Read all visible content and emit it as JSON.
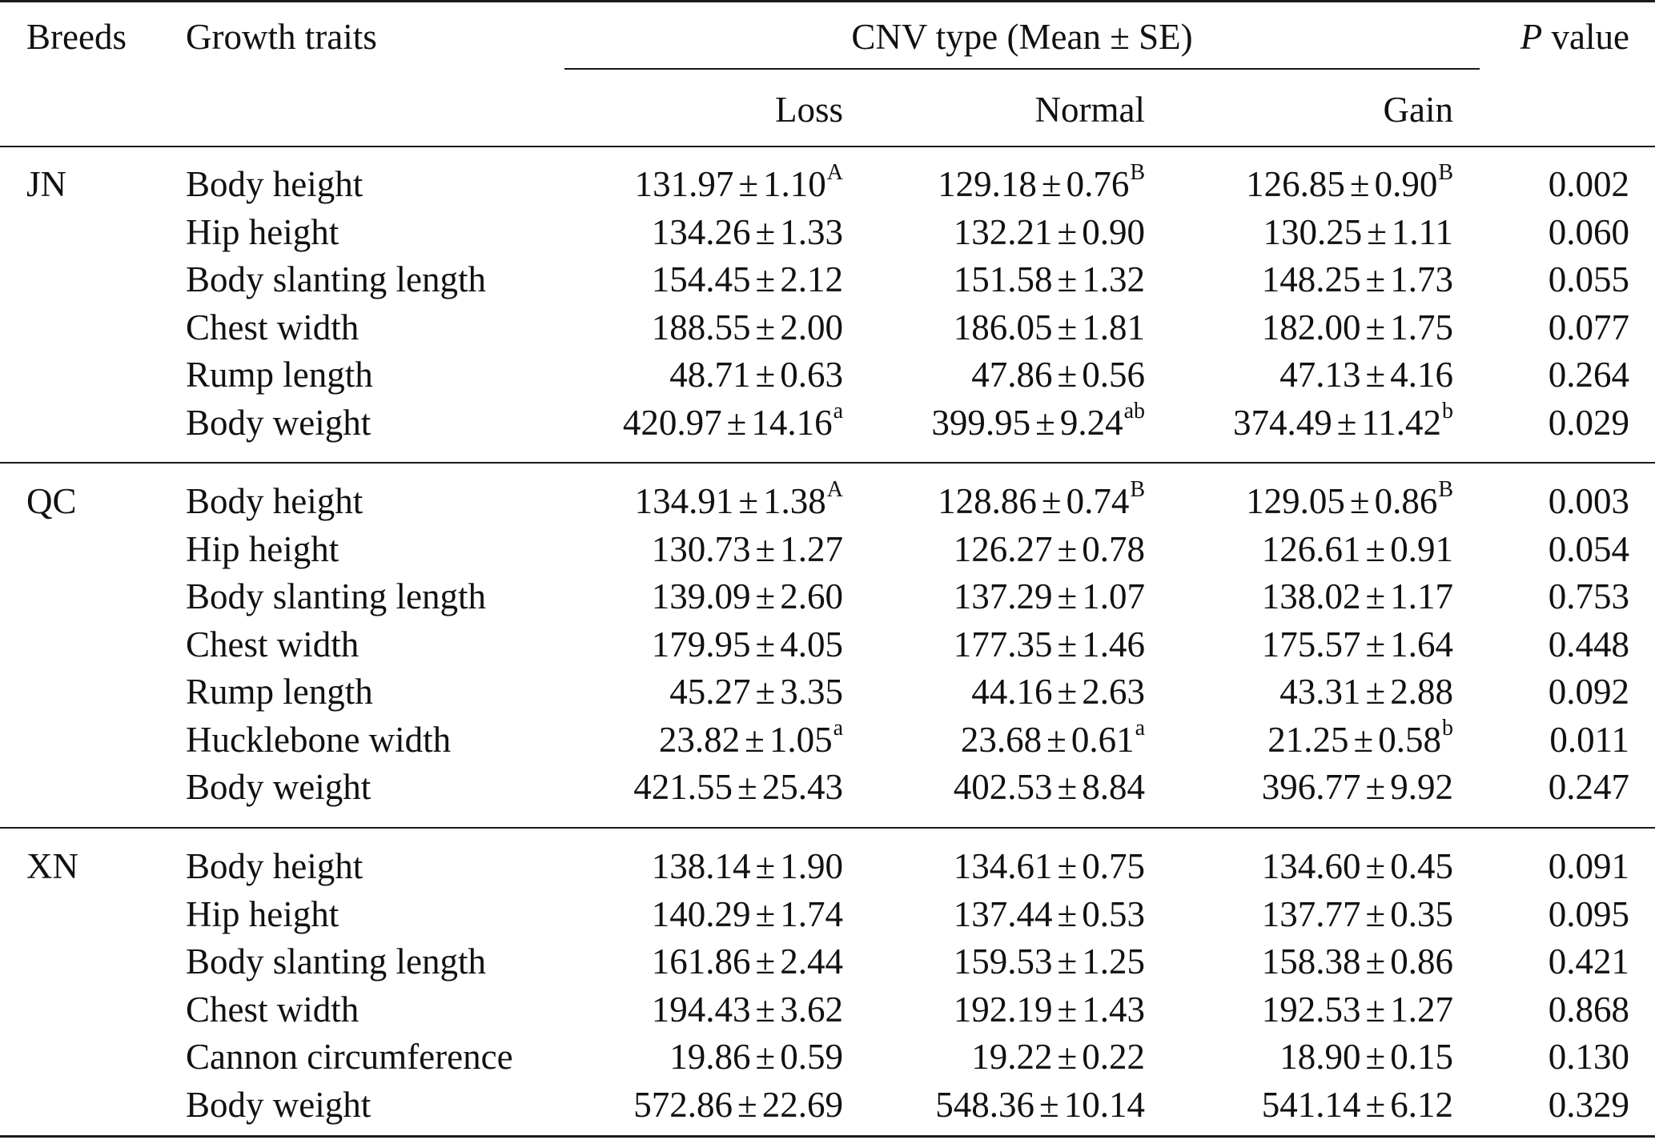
{
  "header": {
    "breeds": "Breeds",
    "growth_traits": "Growth traits",
    "cnv_type": "CNV type (Mean ± SE)",
    "p_italic": "P",
    "p_rest": "value",
    "loss": "Loss",
    "normal": "Normal",
    "gain": "Gain"
  },
  "pm": "±",
  "sections": [
    {
      "breed": "JN",
      "rows": [
        {
          "trait": "Body height",
          "loss": "131.97",
          "loss_se": "1.10",
          "loss_sup": "A",
          "normal": "129.18",
          "normal_se": "0.76",
          "normal_sup": "B",
          "gain": "126.85",
          "gain_se": "0.90",
          "gain_sup": "B",
          "p": "0.002"
        },
        {
          "trait": "Hip height",
          "loss": "134.26",
          "loss_se": "1.33",
          "loss_sup": "",
          "normal": "132.21",
          "normal_se": "0.90",
          "normal_sup": "",
          "gain": "130.25",
          "gain_se": "1.11",
          "gain_sup": "",
          "p": "0.060"
        },
        {
          "trait": "Body slanting length",
          "loss": "154.45",
          "loss_se": "2.12",
          "loss_sup": "",
          "normal": "151.58",
          "normal_se": "1.32",
          "normal_sup": "",
          "gain": "148.25",
          "gain_se": "1.73",
          "gain_sup": "",
          "p": "0.055"
        },
        {
          "trait": "Chest width",
          "loss": "188.55",
          "loss_se": "2.00",
          "loss_sup": "",
          "normal": "186.05",
          "normal_se": "1.81",
          "normal_sup": "",
          "gain": "182.00",
          "gain_se": "1.75",
          "gain_sup": "",
          "p": "0.077"
        },
        {
          "trait": "Rump length",
          "loss": "48.71",
          "loss_se": "0.63",
          "loss_sup": "",
          "normal": "47.86",
          "normal_se": "0.56",
          "normal_sup": "",
          "gain": "47.13",
          "gain_se": "4.16",
          "gain_sup": "",
          "p": "0.264"
        },
        {
          "trait": "Body weight",
          "loss": "420.97",
          "loss_se": "14.16",
          "loss_sup": "a",
          "normal": "399.95",
          "normal_se": "9.24",
          "normal_sup": "ab",
          "gain": "374.49",
          "gain_se": "11.42",
          "gain_sup": "b",
          "p": "0.029"
        }
      ]
    },
    {
      "breed": "QC",
      "rows": [
        {
          "trait": "Body height",
          "loss": "134.91",
          "loss_se": "1.38",
          "loss_sup": "A",
          "normal": "128.86",
          "normal_se": "0.74",
          "normal_sup": "B",
          "gain": "129.05",
          "gain_se": "0.86",
          "gain_sup": "B",
          "p": "0.003"
        },
        {
          "trait": "Hip height",
          "loss": "130.73",
          "loss_se": "1.27",
          "loss_sup": "",
          "normal": "126.27",
          "normal_se": "0.78",
          "normal_sup": "",
          "gain": "126.61",
          "gain_se": "0.91",
          "gain_sup": "",
          "p": "0.054"
        },
        {
          "trait": "Body slanting length",
          "loss": "139.09",
          "loss_se": "2.60",
          "loss_sup": "",
          "normal": "137.29",
          "normal_se": "1.07",
          "normal_sup": "",
          "gain": "138.02",
          "gain_se": "1.17",
          "gain_sup": "",
          "p": "0.753"
        },
        {
          "trait": "Chest width",
          "loss": "179.95",
          "loss_se": "4.05",
          "loss_sup": "",
          "normal": "177.35",
          "normal_se": "1.46",
          "normal_sup": "",
          "gain": "175.57",
          "gain_se": "1.64",
          "gain_sup": "",
          "p": "0.448"
        },
        {
          "trait": "Rump length",
          "loss": "45.27",
          "loss_se": "3.35",
          "loss_sup": "",
          "normal": "44.16",
          "normal_se": "2.63",
          "normal_sup": "",
          "gain": "43.31",
          "gain_se": "2.88",
          "gain_sup": "",
          "p": "0.092"
        },
        {
          "trait": "Hucklebone width",
          "loss": "23.82",
          "loss_se": "1.05",
          "loss_sup": "a",
          "normal": "23.68",
          "normal_se": "0.61",
          "normal_sup": "a",
          "gain": "21.25",
          "gain_se": "0.58",
          "gain_sup": "b",
          "p": "0.011"
        },
        {
          "trait": "Body weight",
          "loss": "421.55",
          "loss_se": "25.43",
          "loss_sup": "",
          "normal": "402.53",
          "normal_se": "8.84",
          "normal_sup": "",
          "gain": "396.77",
          "gain_se": "9.92",
          "gain_sup": "",
          "p": "0.247"
        }
      ]
    },
    {
      "breed": "XN",
      "rows": [
        {
          "trait": "Body height",
          "loss": "138.14",
          "loss_se": "1.90",
          "loss_sup": "",
          "normal": "134.61",
          "normal_se": "0.75",
          "normal_sup": "",
          "gain": "134.60",
          "gain_se": "0.45",
          "gain_sup": "",
          "p": "0.091"
        },
        {
          "trait": "Hip height",
          "loss": "140.29",
          "loss_se": "1.74",
          "loss_sup": "",
          "normal": "137.44",
          "normal_se": "0.53",
          "normal_sup": "",
          "gain": "137.77",
          "gain_se": "0.35",
          "gain_sup": "",
          "p": "0.095"
        },
        {
          "trait": "Body slanting length",
          "loss": "161.86",
          "loss_se": "2.44",
          "loss_sup": "",
          "normal": "159.53",
          "normal_se": "1.25",
          "normal_sup": "",
          "gain": "158.38",
          "gain_se": "0.86",
          "gain_sup": "",
          "p": "0.421"
        },
        {
          "trait": "Chest width",
          "loss": "194.43",
          "loss_se": "3.62",
          "loss_sup": "",
          "normal": "192.19",
          "normal_se": "1.43",
          "normal_sup": "",
          "gain": "192.53",
          "gain_se": "1.27",
          "gain_sup": "",
          "p": "0.868"
        },
        {
          "trait": "Cannon circumference",
          "loss": "19.86",
          "loss_se": "0.59",
          "loss_sup": "",
          "normal": "19.22",
          "normal_se": "0.22",
          "normal_sup": "",
          "gain": "18.90",
          "gain_se": "0.15",
          "gain_sup": "",
          "p": "0.130"
        },
        {
          "trait": "Body weight",
          "loss": "572.86",
          "loss_se": "22.69",
          "loss_sup": "",
          "normal": "548.36",
          "normal_se": "10.14",
          "normal_sup": "",
          "gain": "541.14",
          "gain_se": "6.12",
          "gain_sup": "",
          "p": "0.329"
        }
      ]
    }
  ]
}
